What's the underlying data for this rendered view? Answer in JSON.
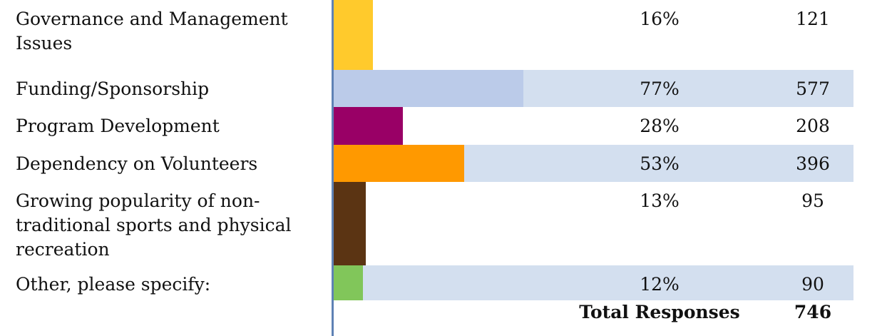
{
  "chart_data": {
    "type": "bar",
    "orientation": "horizontal",
    "categories": [
      "Governance and Management\nIssues",
      "Funding/Sponsorship",
      "Program Development",
      "Dependency on Volunteers",
      "Growing popularity of non-\ntraditional sports      and physical\nrecreation",
      "Other, please specify:"
    ],
    "percent_labels": [
      "16%",
      "77%",
      "28%",
      "53%",
      "13%",
      "12%"
    ],
    "values": [
      16,
      77,
      28,
      53,
      13,
      12
    ],
    "counts": [
      121,
      577,
      208,
      396,
      95,
      90
    ],
    "bar_colors": [
      "#ffca2c",
      "#bbcbe9",
      "#990066",
      "#ff9900",
      "#5b3413",
      "#81c65a"
    ],
    "stripe_color": "#d3dfef",
    "divider_color": "#5f82b5",
    "total_label": "Total Responses",
    "total_value": "746"
  }
}
